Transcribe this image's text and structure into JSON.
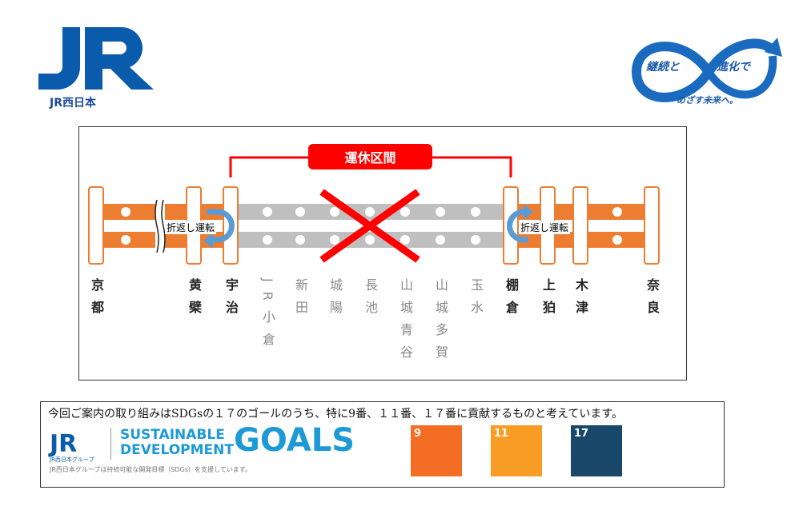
{
  "header": {
    "jr_logo_text": "JR",
    "jr_logo_sub": "JR西日本",
    "slogan_top_left": "継続と",
    "slogan_top_right": "進化で",
    "slogan_bottom": "めざす未来へ。"
  },
  "diagram": {
    "suspended_label": "運休区間",
    "turnback_label": "折返し運転",
    "stations": [
      {
        "name": "京都",
        "status": "operating"
      },
      {
        "name": "黄檗",
        "status": "operating"
      },
      {
        "name": "宇治",
        "status": "operating"
      },
      {
        "name": "JR小倉",
        "status": "suspended"
      },
      {
        "name": "新田",
        "status": "suspended"
      },
      {
        "name": "城陽",
        "status": "suspended"
      },
      {
        "name": "長池",
        "status": "suspended"
      },
      {
        "name": "山城青谷",
        "status": "suspended"
      },
      {
        "name": "山城多賀",
        "status": "suspended"
      },
      {
        "name": "玉水",
        "status": "suspended"
      },
      {
        "name": "棚倉",
        "status": "operating"
      },
      {
        "name": "上狛",
        "status": "operating"
      },
      {
        "name": "木津",
        "status": "operating"
      },
      {
        "name": "奈良",
        "status": "operating"
      }
    ],
    "colors": {
      "operating": "#ed7d31",
      "suspended": "#bfbfbf",
      "alert": "#ff0000",
      "arrow": "#5b9bd5"
    }
  },
  "sdgs": {
    "note": "今回ご案内の取り組みはSDGsの１７のゴールのうち、特に9番、１１番、１７番に貢献するものと考えています。",
    "logo_line1": "SUSTAINABLE",
    "logo_line2": "DEVELOPMENT",
    "logo_goals": "GOALS",
    "group_label": "JR西日本グループ",
    "support_text": "JR西日本グループは持続可能な開発目標（SDGs）を支援しています。",
    "goals": [
      {
        "number": "9",
        "color": "#f36d25"
      },
      {
        "number": "11",
        "color": "#f99d26"
      },
      {
        "number": "17",
        "color": "#19486a"
      }
    ]
  }
}
